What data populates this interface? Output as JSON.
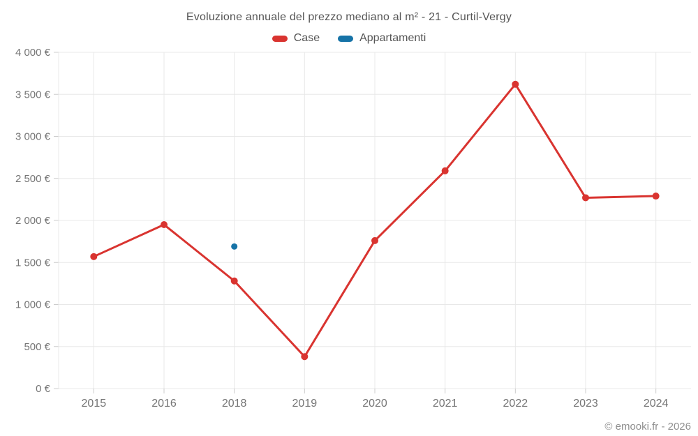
{
  "title": "Evoluzione annuale del prezzo mediano al m² - 21 - Curtil-Vergy",
  "legend": [
    {
      "label": "Case",
      "color": "#d93430"
    },
    {
      "label": "Appartamenti",
      "color": "#1673a7"
    }
  ],
  "footer": "© emooki.fr - 2026",
  "chart_data": {
    "type": "line",
    "title": "Evoluzione annuale del prezzo mediano al m² - 21 - Curtil-Vergy",
    "categories": [
      "2015",
      "2016",
      "2018",
      "2019",
      "2020",
      "2021",
      "2022",
      "2023",
      "2024"
    ],
    "series": [
      {
        "name": "Case",
        "color": "#d93430",
        "values": [
          1570,
          1950,
          1280,
          380,
          1760,
          2590,
          3620,
          2270,
          2290
        ]
      },
      {
        "name": "Appartamenti",
        "color": "#1673a7",
        "values": [
          null,
          null,
          1690,
          null,
          null,
          null,
          null,
          null,
          null
        ]
      }
    ],
    "xlabel": "",
    "ylabel": "",
    "ylim": [
      0,
      4000
    ],
    "ytick_step": 500,
    "ytick_labels": [
      "0 €",
      "500 €",
      "1 000 €",
      "1 500 €",
      "2 000 €",
      "2 500 €",
      "3 000 €",
      "3 500 €",
      "4 000 €"
    ],
    "grid": true,
    "legend_position": "top",
    "currency": "€"
  }
}
